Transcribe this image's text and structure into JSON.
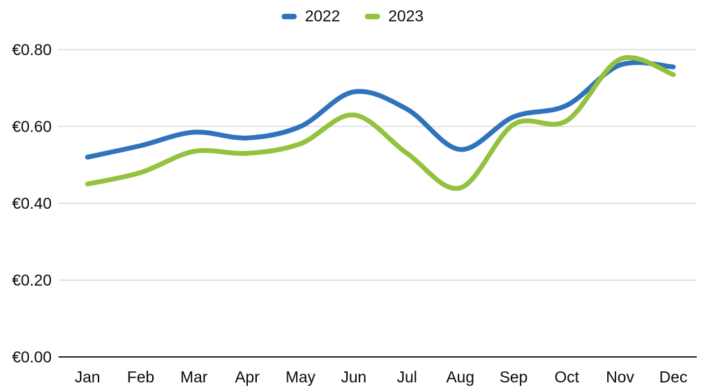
{
  "chart_data": {
    "type": "line",
    "title": "",
    "line_style": "smooth",
    "legend_position": "top",
    "grid": true,
    "categories": [
      "Jan",
      "Feb",
      "Mar",
      "Apr",
      "May",
      "Jun",
      "Jul",
      "Aug",
      "Sep",
      "Oct",
      "Nov",
      "Dec"
    ],
    "series": [
      {
        "name": "2022",
        "color": "#2E73BC",
        "values": [
          0.52,
          0.55,
          0.585,
          0.57,
          0.6,
          0.69,
          0.645,
          0.54,
          0.625,
          0.655,
          0.76,
          0.755
        ]
      },
      {
        "name": "2023",
        "color": "#94C13E",
        "values": [
          0.45,
          0.48,
          0.535,
          0.53,
          0.555,
          0.63,
          0.53,
          0.44,
          0.605,
          0.615,
          0.775,
          0.735
        ]
      }
    ],
    "y_ticks": [
      "€0.00",
      "€0.20",
      "€0.40",
      "€0.60",
      "€0.80"
    ],
    "y_tick_values": [
      0,
      0.2,
      0.4,
      0.6,
      0.8
    ],
    "ylim": [
      0,
      0.8
    ],
    "currency_symbol": "€"
  },
  "colors": {
    "axis_line": "#1f1f1f",
    "gridline": "#d9d9d9",
    "label_text": "#0b0b0b",
    "background": "#ffffff"
  }
}
